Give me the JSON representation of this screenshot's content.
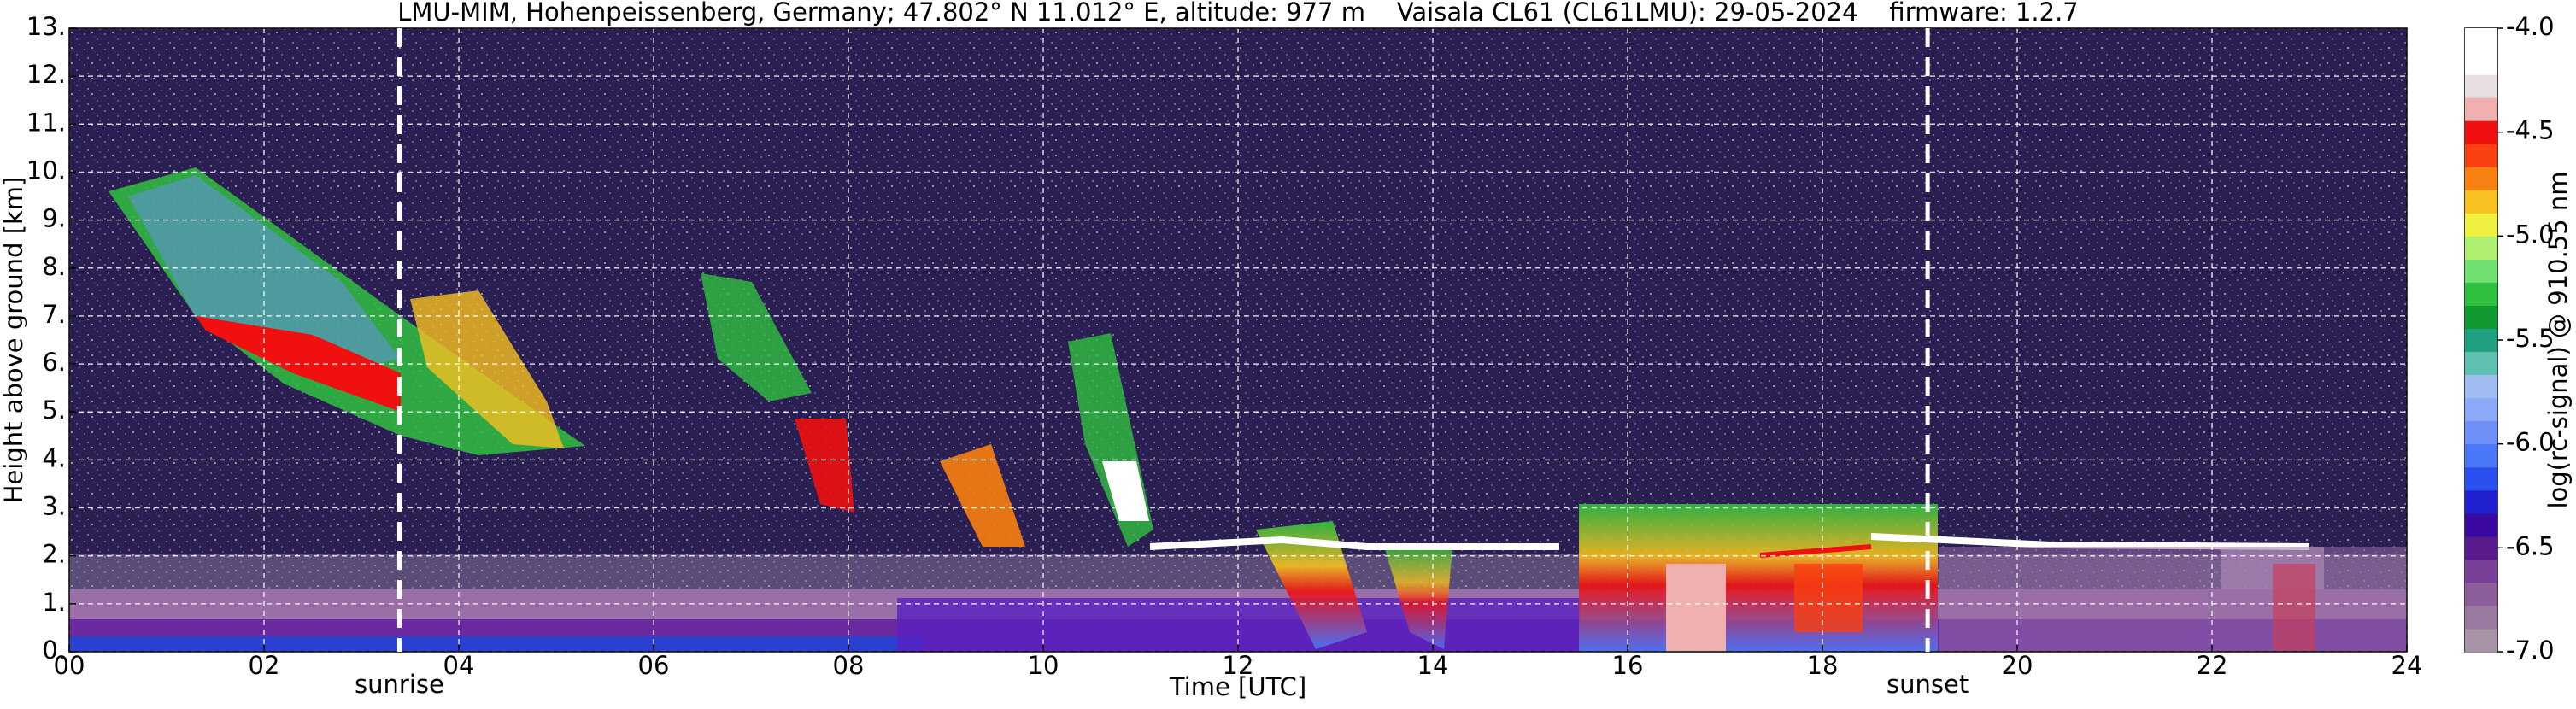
{
  "chart_data": {
    "type": "heatmap",
    "title": "LMU-MIM, Hohenpeissenberg, Germany; 47.802° N 11.012° E, altitude: 977 m    Vaisala CL61 (CL61LMU): 29-05-2024    firmware: 1.2.7",
    "xlabel": "Time [UTC]",
    "ylabel": "Height above ground [km]",
    "xlim": [
      0,
      24
    ],
    "xticks": [
      {
        "value": 0,
        "label": "00"
      },
      {
        "value": 2,
        "label": "02"
      },
      {
        "value": 4,
        "label": "04"
      },
      {
        "value": 6,
        "label": "06"
      },
      {
        "value": 8,
        "label": "08"
      },
      {
        "value": 10,
        "label": "10"
      },
      12,
      14,
      16,
      18,
      20,
      22,
      24
    ],
    "ylim": [
      0,
      13
    ],
    "yticks": [
      {
        "value": 0,
        "label": "0."
      },
      {
        "value": 1,
        "label": "1."
      },
      {
        "value": 2,
        "label": "2."
      },
      {
        "value": 3,
        "label": "3."
      },
      {
        "value": 4,
        "label": "4."
      },
      {
        "value": 5,
        "label": "5."
      },
      {
        "value": 6,
        "label": "6."
      },
      {
        "value": 7,
        "label": "7."
      },
      {
        "value": 8,
        "label": "8."
      },
      {
        "value": 9,
        "label": "9."
      },
      {
        "value": 10,
        "label": "10."
      },
      {
        "value": 11,
        "label": "11."
      },
      {
        "value": 12,
        "label": "12."
      },
      {
        "value": 13,
        "label": "13."
      }
    ],
    "grid": true,
    "colorbar_label": "log(rc-signal) @ 910.55 nm",
    "clim": [
      -7,
      -4
    ],
    "cticks": [
      {
        "value": -7,
        "label": "-7.0"
      },
      {
        "value": -6.5,
        "label": "-6.5"
      },
      {
        "value": -6,
        "label": "-6.0"
      },
      {
        "value": -5.5,
        "label": "-5.5"
      },
      {
        "value": -5,
        "label": "-5.0"
      },
      {
        "value": -4.5,
        "label": "-4.5"
      },
      {
        "value": -4,
        "label": "-4.0"
      }
    ],
    "colormap": [
      "#a892a8",
      "#9a7aa0",
      "#8c5f9c",
      "#7a3f98",
      "#5a1a8c",
      "#3a0aa0",
      "#2020d0",
      "#2a50f0",
      "#4a78f8",
      "#6c90f8",
      "#8ca8f8",
      "#a0bcf0",
      "#60c0b0",
      "#20a080",
      "#109a30",
      "#30c040",
      "#70e070",
      "#b0f070",
      "#f0f040",
      "#f8c020",
      "#f88010",
      "#f84010",
      "#f01010",
      "#f0b0b0",
      "#e8e0e0",
      "#ffffff",
      "#ffffff"
    ],
    "annotations": [
      {
        "text": "sunrise",
        "x": 3.39
      },
      {
        "text": "sunset",
        "x": 19.08
      }
    ]
  }
}
